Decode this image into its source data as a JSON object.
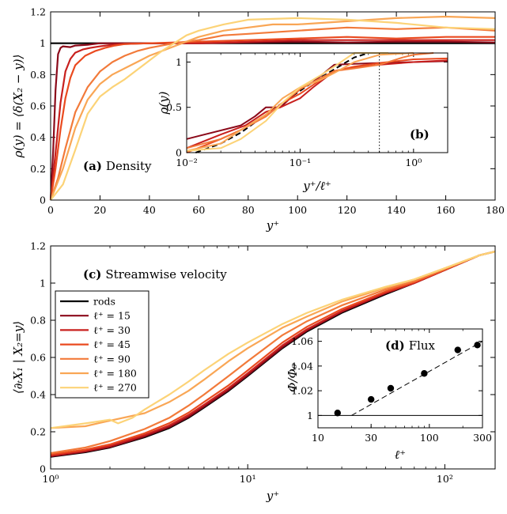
{
  "figure": {
    "panel_a": {
      "tag": "(a)",
      "label": "Density"
    },
    "panel_b": {
      "tag": "(b)"
    },
    "panel_c": {
      "tag": "(c)",
      "label": "Streamwise velocity"
    },
    "panel_d": {
      "tag": "(d)",
      "label": "Flux"
    }
  },
  "legend": {
    "entries": [
      {
        "label": "rods",
        "color": "#000000"
      },
      {
        "label": "ℓ⁺ = 15",
        "color": "#8b0a1a"
      },
      {
        "label": "ℓ⁺ = 30",
        "color": "#c8201e"
      },
      {
        "label": "ℓ⁺ = 45",
        "color": "#ea4a1f"
      },
      {
        "label": "ℓ⁺ = 90",
        "color": "#f27a3a"
      },
      {
        "label": "ℓ⁺ = 180",
        "color": "#f9a655"
      },
      {
        "label": "ℓ⁺ = 270",
        "color": "#fcd377"
      }
    ]
  },
  "chart_data": [
    {
      "id": "a",
      "type": "line",
      "title": "(a) Density",
      "xlabel": "y⁺",
      "ylabel": "ρ(y) = ⟨δ(X₂ − y)⟩",
      "xlim": [
        0,
        180
      ],
      "ylim": [
        0,
        1.2
      ],
      "xticks": [
        0,
        20,
        40,
        60,
        80,
        100,
        120,
        140,
        160,
        180
      ],
      "yticks": [
        0,
        0.2,
        0.4,
        0.6,
        0.8,
        1,
        1.2
      ],
      "x_tick_labels": [
        "0",
        "20",
        "40",
        "60",
        "80",
        "100",
        "120",
        "140",
        "160",
        "180"
      ],
      "y_tick_labels": [
        "0",
        "0.2",
        "0.4",
        "0.6",
        "0.8",
        "1",
        "1.2"
      ],
      "series": [
        {
          "name": "rods",
          "color": "#000000",
          "x": [
            0,
            180
          ],
          "y": [
            1,
            1
          ]
        },
        {
          "name": "ℓ⁺ = 15",
          "color": "#8b0a1a",
          "x": [
            0,
            1,
            2,
            3,
            4,
            5,
            8,
            10,
            15,
            20,
            30,
            40,
            60,
            80,
            100,
            120,
            140,
            160,
            180
          ],
          "y": [
            0,
            0.3,
            0.7,
            0.93,
            0.97,
            0.98,
            0.975,
            0.985,
            0.99,
            1.0,
            1.0,
            1.0,
            1.0,
            1.005,
            1.01,
            1.005,
            1.01,
            1.01,
            1.005
          ]
        },
        {
          "name": "ℓ⁺ = 30",
          "color": "#c8201e",
          "x": [
            0,
            2,
            4,
            6,
            8,
            10,
            13,
            16,
            20,
            25,
            30,
            40,
            60,
            80,
            100,
            120,
            140,
            160,
            180
          ],
          "y": [
            0,
            0.3,
            0.62,
            0.82,
            0.9,
            0.94,
            0.96,
            0.97,
            0.98,
            0.99,
            0.995,
            1.0,
            1.0,
            1.01,
            1.02,
            1.02,
            1.02,
            1.02,
            1.02
          ]
        },
        {
          "name": "ℓ⁺ = 45",
          "color": "#ea4a1f",
          "x": [
            0,
            2,
            4,
            6,
            8,
            10,
            14,
            18,
            22,
            26,
            30,
            40,
            60,
            80,
            100,
            120,
            140,
            160,
            180
          ],
          "y": [
            0,
            0.2,
            0.45,
            0.65,
            0.78,
            0.86,
            0.92,
            0.95,
            0.97,
            0.985,
            0.995,
            1.0,
            1.01,
            1.02,
            1.03,
            1.04,
            1.03,
            1.04,
            1.04
          ]
        },
        {
          "name": "ℓ⁺ = 90",
          "color": "#f27a3a",
          "x": [
            0,
            3,
            6,
            10,
            15,
            20,
            25,
            30,
            35,
            40,
            50,
            60,
            70,
            80,
            100,
            120,
            140,
            160,
            180
          ],
          "y": [
            0,
            0.14,
            0.33,
            0.56,
            0.72,
            0.82,
            0.88,
            0.92,
            0.95,
            0.97,
            1.0,
            1.02,
            1.05,
            1.06,
            1.08,
            1.1,
            1.09,
            1.1,
            1.08
          ]
        },
        {
          "name": "ℓ⁺ = 180",
          "color": "#f9a655",
          "x": [
            0,
            5,
            10,
            15,
            20,
            25,
            30,
            35,
            40,
            45,
            50,
            60,
            70,
            80,
            90,
            100,
            120,
            140,
            160,
            180
          ],
          "y": [
            0,
            0.2,
            0.46,
            0.64,
            0.74,
            0.8,
            0.84,
            0.88,
            0.92,
            0.95,
            0.98,
            1.04,
            1.08,
            1.1,
            1.12,
            1.12,
            1.14,
            1.16,
            1.17,
            1.16
          ]
        },
        {
          "name": "ℓ⁺ = 270",
          "color": "#fcd377",
          "x": [
            0,
            5,
            10,
            15,
            20,
            25,
            30,
            35,
            40,
            45,
            50,
            55,
            60,
            70,
            80,
            100,
            120,
            140,
            160,
            180
          ],
          "y": [
            0,
            0.1,
            0.32,
            0.55,
            0.66,
            0.72,
            0.77,
            0.83,
            0.89,
            0.95,
            1.0,
            1.05,
            1.08,
            1.12,
            1.15,
            1.16,
            1.15,
            1.13,
            1.1,
            1.09
          ]
        }
      ]
    },
    {
      "id": "b",
      "type": "line",
      "title": "(b)",
      "xlabel": "y⁺/ℓ⁺",
      "ylabel": "ρ(y)",
      "xscale": "log",
      "xlim": [
        0.01,
        2
      ],
      "ylim": [
        0,
        1.1
      ],
      "xticks": [
        0.01,
        0.1,
        1
      ],
      "yticks": [
        0,
        0.5,
        1
      ],
      "x_tick_labels": [
        "10⁻²",
        "10⁻¹",
        "10⁰"
      ],
      "y_tick_labels": [
        "0",
        "0.5",
        "1"
      ],
      "vline": 0.5,
      "series": [
        {
          "name": "fit",
          "color": "#000000",
          "dashed": true,
          "x": [
            0.012,
            0.02,
            0.03,
            0.05,
            0.08,
            0.12,
            0.2,
            0.3,
            0.4
          ],
          "y": [
            0.0,
            0.1,
            0.22,
            0.42,
            0.6,
            0.75,
            0.92,
            1.05,
            1.14
          ]
        },
        {
          "name": "ℓ⁺ = 15",
          "color": "#8b0a1a",
          "x": [
            0.01,
            0.03,
            0.04,
            0.05,
            0.067,
            0.1,
            0.13,
            0.2,
            0.3,
            0.5,
            1.0,
            2.0
          ],
          "y": [
            0.15,
            0.3,
            0.4,
            0.5,
            0.5,
            0.7,
            0.78,
            0.97,
            0.98,
            0.99,
            1.0,
            1.01
          ]
        },
        {
          "name": "ℓ⁺ = 30",
          "color": "#c8201e",
          "x": [
            0.01,
            0.02,
            0.033,
            0.05,
            0.067,
            0.1,
            0.13,
            0.2,
            0.3,
            0.5,
            1.0,
            2.0
          ],
          "y": [
            0.05,
            0.2,
            0.3,
            0.45,
            0.5,
            0.6,
            0.72,
            0.9,
            0.94,
            0.97,
            1.0,
            1.02
          ]
        },
        {
          "name": "ℓ⁺ = 45",
          "color": "#ea4a1f",
          "x": [
            0.01,
            0.02,
            0.03,
            0.05,
            0.07,
            0.1,
            0.15,
            0.2,
            0.3,
            0.5,
            1.0,
            2.0
          ],
          "y": [
            0.0,
            0.15,
            0.25,
            0.4,
            0.55,
            0.65,
            0.8,
            0.9,
            0.95,
            0.99,
            1.03,
            1.04
          ]
        },
        {
          "name": "ℓ⁺ = 90",
          "color": "#f27a3a",
          "x": [
            0.01,
            0.02,
            0.03,
            0.05,
            0.07,
            0.1,
            0.15,
            0.2,
            0.3,
            0.5,
            0.8,
            1.0,
            1.5
          ],
          "y": [
            0.05,
            0.15,
            0.25,
            0.4,
            0.55,
            0.7,
            0.82,
            0.9,
            0.93,
            0.97,
            1.05,
            1.08,
            1.1
          ]
        },
        {
          "name": "ℓ⁺ = 180",
          "color": "#f9a655",
          "x": [
            0.01,
            0.02,
            0.03,
            0.05,
            0.07,
            0.1,
            0.15,
            0.2,
            0.3,
            0.5,
            1.0
          ],
          "y": [
            0.02,
            0.1,
            0.25,
            0.42,
            0.6,
            0.72,
            0.8,
            0.88,
            1.0,
            1.08,
            1.12
          ]
        },
        {
          "name": "ℓ⁺ = 270",
          "color": "#fcd377",
          "x": [
            0.01,
            0.02,
            0.03,
            0.05,
            0.07,
            0.1,
            0.15,
            0.2,
            0.3,
            0.4,
            0.5,
            0.6
          ],
          "y": [
            0.02,
            0.05,
            0.15,
            0.35,
            0.55,
            0.72,
            0.85,
            0.95,
            1.1,
            1.14,
            1.15,
            1.14
          ]
        }
      ]
    },
    {
      "id": "c",
      "type": "line",
      "title": "(c) Streamwise velocity",
      "xlabel": "y⁺",
      "ylabel": "⟨∂ₜX₁ | X₂=y⟩",
      "xscale": "log",
      "xlim": [
        1,
        180
      ],
      "ylim": [
        0,
        1.2
      ],
      "xticks": [
        1,
        10,
        100
      ],
      "yticks": [
        0,
        0.2,
        0.4,
        0.6,
        0.8,
        1,
        1.2
      ],
      "x_tick_labels": [
        "10⁰",
        "10¹",
        "10²"
      ],
      "y_tick_labels": [
        "0",
        "0.2",
        "0.4",
        "0.6",
        "0.8",
        "1",
        "1.2"
      ],
      "series": [
        {
          "name": "rods",
          "color": "#000000",
          "x": [
            1,
            1.5,
            2,
            3,
            4,
            5,
            6,
            8,
            10,
            15,
            20,
            30,
            50,
            70,
            100,
            150,
            180
          ],
          "y": [
            0.065,
            0.09,
            0.115,
            0.17,
            0.22,
            0.275,
            0.33,
            0.42,
            0.5,
            0.65,
            0.74,
            0.84,
            0.94,
            1.0,
            1.07,
            1.15,
            1.17
          ]
        },
        {
          "name": "ℓ⁺ = 15",
          "color": "#8b0a1a",
          "x": [
            1,
            1.5,
            2,
            3,
            4,
            5,
            6,
            8,
            10,
            15,
            20,
            30,
            50,
            70,
            100,
            150,
            180
          ],
          "y": [
            0.068,
            0.093,
            0.118,
            0.175,
            0.225,
            0.28,
            0.335,
            0.425,
            0.505,
            0.655,
            0.745,
            0.845,
            0.945,
            1.0,
            1.07,
            1.15,
            1.17
          ]
        },
        {
          "name": "ℓ⁺ = 30",
          "color": "#c8201e",
          "x": [
            1,
            1.5,
            2,
            3,
            4,
            5,
            6,
            8,
            10,
            15,
            20,
            30,
            50,
            70,
            100,
            150,
            180
          ],
          "y": [
            0.072,
            0.097,
            0.124,
            0.182,
            0.234,
            0.29,
            0.345,
            0.435,
            0.515,
            0.665,
            0.752,
            0.85,
            0.948,
            1.0,
            1.07,
            1.15,
            1.17
          ]
        },
        {
          "name": "ℓ⁺ = 45",
          "color": "#ea4a1f",
          "x": [
            1,
            1.5,
            2,
            3,
            4,
            5,
            6,
            8,
            10,
            15,
            20,
            30,
            50,
            70,
            100,
            150,
            180
          ],
          "y": [
            0.078,
            0.104,
            0.132,
            0.192,
            0.246,
            0.302,
            0.36,
            0.45,
            0.53,
            0.68,
            0.765,
            0.86,
            0.955,
            1.005,
            1.072,
            1.15,
            1.17
          ]
        },
        {
          "name": "ℓ⁺ = 90",
          "color": "#f27a3a",
          "x": [
            1,
            1.5,
            2,
            3,
            4,
            5,
            6,
            8,
            10,
            15,
            20,
            30,
            50,
            70,
            100,
            150,
            180
          ],
          "y": [
            0.085,
            0.115,
            0.15,
            0.215,
            0.275,
            0.34,
            0.4,
            0.5,
            0.58,
            0.72,
            0.795,
            0.88,
            0.965,
            1.01,
            1.075,
            1.15,
            1.17
          ]
        },
        {
          "name": "ℓ⁺ = 180",
          "color": "#f9a655",
          "x": [
            1,
            1.5,
            2,
            3,
            4,
            5,
            6,
            8,
            10,
            15,
            20,
            30,
            50,
            70,
            100,
            150,
            180
          ],
          "y": [
            0.22,
            0.23,
            0.26,
            0.3,
            0.36,
            0.42,
            0.48,
            0.58,
            0.65,
            0.76,
            0.82,
            0.9,
            0.975,
            1.02,
            1.08,
            1.15,
            1.17
          ]
        },
        {
          "name": "ℓ⁺ = 270",
          "color": "#fcd377",
          "x": [
            1,
            1.5,
            2,
            2.2,
            2.6,
            3,
            4,
            5,
            6,
            8,
            10,
            15,
            20,
            30,
            50,
            70,
            100,
            150,
            180
          ],
          "y": [
            0.22,
            0.245,
            0.265,
            0.245,
            0.275,
            0.32,
            0.4,
            0.47,
            0.53,
            0.62,
            0.68,
            0.78,
            0.84,
            0.91,
            0.98,
            1.02,
            1.08,
            1.15,
            1.17
          ]
        }
      ]
    },
    {
      "id": "d",
      "type": "scatter",
      "title": "(d) Flux",
      "xlabel": "ℓ⁺",
      "ylabel": "Φ/Φ₀",
      "xscale": "log",
      "xlim": [
        10,
        300
      ],
      "ylim": [
        0.99,
        1.07
      ],
      "xticks": [
        10,
        30,
        100,
        300
      ],
      "yticks": [
        1,
        1.02,
        1.04,
        1.06
      ],
      "x_tick_labels": [
        "10",
        "30",
        "100",
        "300"
      ],
      "y_tick_labels": [
        "1",
        "1.02",
        "1.04",
        "1.06"
      ],
      "x": [
        15,
        30,
        45,
        90,
        180,
        270
      ],
      "y": [
        1.002,
        1.013,
        1.022,
        1.034,
        1.053,
        1.057
      ],
      "reference_line": 1,
      "fit_line": {
        "x": [
          20,
          300
        ],
        "y": [
          1.0,
          1.06
        ]
      }
    }
  ]
}
